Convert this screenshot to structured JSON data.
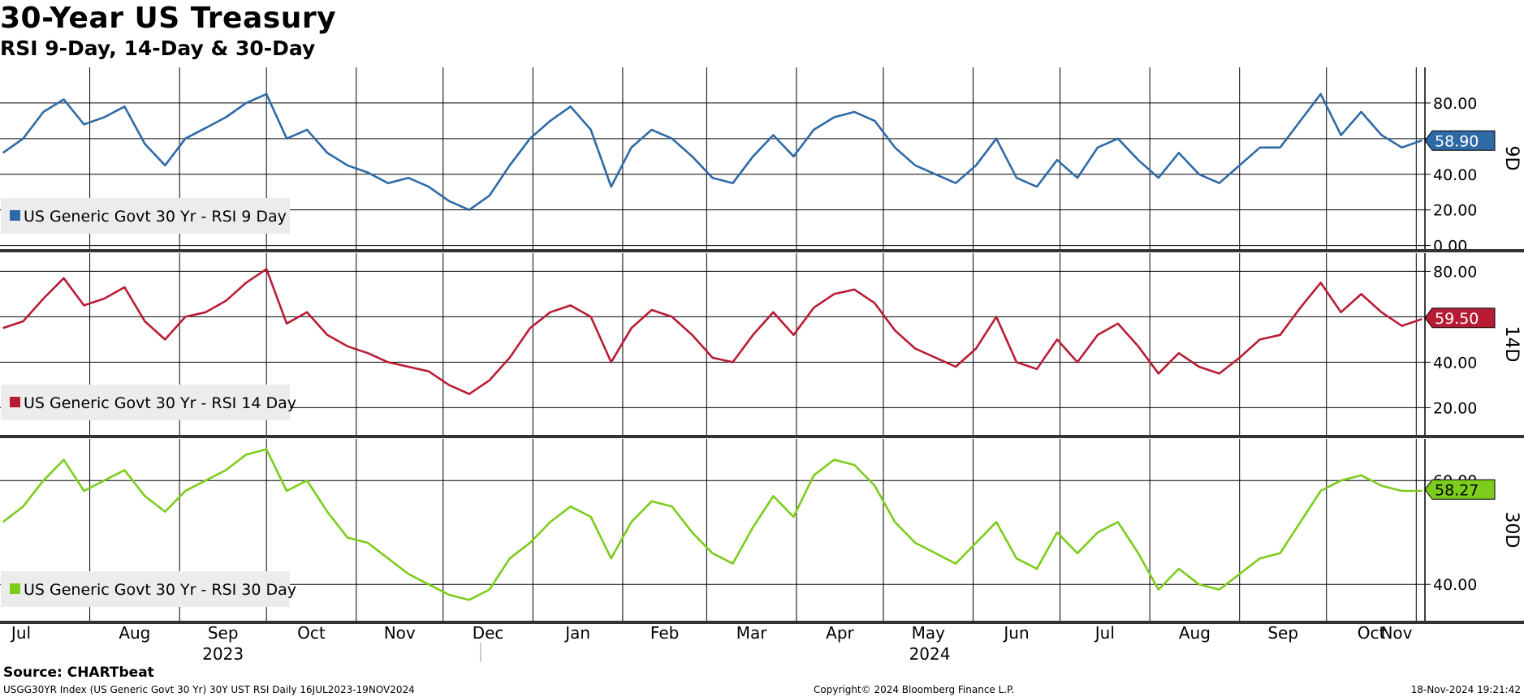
{
  "title": "30-Year US Treasury",
  "subtitle": "RSI 9-Day, 14-Day & 30-Day",
  "footer": {
    "source": "Source: CHARTbeat",
    "ticker": "USGG30YR Index (US Generic Govt 30 Yr) 30Y UST RSI  Daily 16JUL2023-19NOV2024",
    "copyright": "Copyright© 2024 Bloomberg Finance L.P.",
    "timestamp": "18-Nov-2024 19:21:42"
  },
  "colors": {
    "rsi9": "#2e6aa6",
    "rsi14": "#b81c35",
    "rsi30": "#7ccc1c",
    "grid": "#000000"
  },
  "chart_data": [
    {
      "type": "line",
      "name": "9D",
      "legend": "US Generic Govt 30 Yr - RSI 9 Day",
      "last_value": "58.90",
      "ylim": [
        -2,
        100
      ],
      "yticks": [
        0,
        20,
        40,
        60,
        80
      ],
      "ytick_labels": [
        "0.00",
        "20.00",
        "40.00",
        "",
        "80.00"
      ],
      "x": [
        "2023-07-17",
        "2023-07-24",
        "2023-07-31",
        "2023-08-07",
        "2023-08-14",
        "2023-08-21",
        "2023-08-28",
        "2023-09-04",
        "2023-09-11",
        "2023-09-18",
        "2023-09-25",
        "2023-10-02",
        "2023-10-09",
        "2023-10-16",
        "2023-10-23",
        "2023-10-30",
        "2023-11-06",
        "2023-11-13",
        "2023-11-20",
        "2023-11-27",
        "2023-12-04",
        "2023-12-11",
        "2023-12-18",
        "2023-12-25",
        "2024-01-01",
        "2024-01-08",
        "2024-01-15",
        "2024-01-22",
        "2024-01-29",
        "2024-02-05",
        "2024-02-12",
        "2024-02-19",
        "2024-02-26",
        "2024-03-04",
        "2024-03-11",
        "2024-03-18",
        "2024-03-25",
        "2024-04-01",
        "2024-04-08",
        "2024-04-15",
        "2024-04-22",
        "2024-04-29",
        "2024-05-06",
        "2024-05-13",
        "2024-05-20",
        "2024-05-27",
        "2024-06-03",
        "2024-06-10",
        "2024-06-17",
        "2024-06-24",
        "2024-07-01",
        "2024-07-08",
        "2024-07-15",
        "2024-07-22",
        "2024-07-29",
        "2024-08-05",
        "2024-08-12",
        "2024-08-19",
        "2024-08-26",
        "2024-09-02",
        "2024-09-09",
        "2024-09-16",
        "2024-09-23",
        "2024-09-30",
        "2024-10-07",
        "2024-10-14",
        "2024-10-21",
        "2024-10-28",
        "2024-11-04",
        "2024-11-11",
        "2024-11-18"
      ],
      "values": [
        52,
        60,
        75,
        82,
        68,
        72,
        78,
        57,
        45,
        60,
        66,
        72,
        80,
        85,
        60,
        65,
        52,
        45,
        41,
        35,
        38,
        33,
        25,
        20,
        28,
        45,
        60,
        70,
        78,
        65,
        33,
        55,
        65,
        60,
        50,
        38,
        35,
        50,
        62,
        50,
        65,
        72,
        75,
        70,
        55,
        45,
        40,
        35,
        45,
        60,
        38,
        33,
        48,
        38,
        55,
        60,
        48,
        38,
        52,
        40,
        35,
        45,
        55,
        55,
        70,
        85,
        62,
        75,
        62,
        55,
        59
      ]
    },
    {
      "type": "line",
      "name": "14D",
      "legend": "US Generic Govt 30 Yr - RSI 14 Day",
      "last_value": "59.50",
      "ylim": [
        8,
        88
      ],
      "yticks": [
        20,
        40,
        60,
        80
      ],
      "ytick_labels": [
        "20.00",
        "40.00",
        "",
        "80.00"
      ],
      "x": [
        "2023-07-17",
        "2023-07-24",
        "2023-07-31",
        "2023-08-07",
        "2023-08-14",
        "2023-08-21",
        "2023-08-28",
        "2023-09-04",
        "2023-09-11",
        "2023-09-18",
        "2023-09-25",
        "2023-10-02",
        "2023-10-09",
        "2023-10-16",
        "2023-10-23",
        "2023-10-30",
        "2023-11-06",
        "2023-11-13",
        "2023-11-20",
        "2023-11-27",
        "2023-12-04",
        "2023-12-11",
        "2023-12-18",
        "2023-12-25",
        "2024-01-01",
        "2024-01-08",
        "2024-01-15",
        "2024-01-22",
        "2024-01-29",
        "2024-02-05",
        "2024-02-12",
        "2024-02-19",
        "2024-02-26",
        "2024-03-04",
        "2024-03-11",
        "2024-03-18",
        "2024-03-25",
        "2024-04-01",
        "2024-04-08",
        "2024-04-15",
        "2024-04-22",
        "2024-04-29",
        "2024-05-06",
        "2024-05-13",
        "2024-05-20",
        "2024-05-27",
        "2024-06-03",
        "2024-06-10",
        "2024-06-17",
        "2024-06-24",
        "2024-07-01",
        "2024-07-08",
        "2024-07-15",
        "2024-07-22",
        "2024-07-29",
        "2024-08-05",
        "2024-08-12",
        "2024-08-19",
        "2024-08-26",
        "2024-09-02",
        "2024-09-09",
        "2024-09-16",
        "2024-09-23",
        "2024-09-30",
        "2024-10-07",
        "2024-10-14",
        "2024-10-21",
        "2024-10-28",
        "2024-11-04",
        "2024-11-11",
        "2024-11-18"
      ],
      "values": [
        55,
        58,
        68,
        77,
        65,
        68,
        73,
        58,
        50,
        60,
        62,
        67,
        75,
        81,
        57,
        62,
        52,
        47,
        44,
        40,
        38,
        36,
        30,
        26,
        32,
        42,
        55,
        62,
        65,
        60,
        40,
        55,
        63,
        60,
        52,
        42,
        40,
        52,
        62,
        52,
        64,
        70,
        72,
        66,
        54,
        46,
        42,
        38,
        46,
        60,
        40,
        37,
        50,
        40,
        52,
        57,
        47,
        35,
        44,
        38,
        35,
        42,
        50,
        52,
        64,
        75,
        62,
        70,
        62,
        56,
        59
      ]
    },
    {
      "type": "line",
      "name": "30D",
      "legend": "US Generic Govt 30 Yr - RSI 30 Day",
      "last_value": "58.27",
      "ylim": [
        33,
        68
      ],
      "yticks": [
        40,
        60
      ],
      "ytick_labels": [
        "40.00",
        "60.00"
      ],
      "x": [
        "2023-07-17",
        "2023-07-24",
        "2023-07-31",
        "2023-08-07",
        "2023-08-14",
        "2023-08-21",
        "2023-08-28",
        "2023-09-04",
        "2023-09-11",
        "2023-09-18",
        "2023-09-25",
        "2023-10-02",
        "2023-10-09",
        "2023-10-16",
        "2023-10-23",
        "2023-10-30",
        "2023-11-06",
        "2023-11-13",
        "2023-11-20",
        "2023-11-27",
        "2023-12-04",
        "2023-12-11",
        "2023-12-18",
        "2023-12-25",
        "2024-01-01",
        "2024-01-08",
        "2024-01-15",
        "2024-01-22",
        "2024-01-29",
        "2024-02-05",
        "2024-02-12",
        "2024-02-19",
        "2024-02-26",
        "2024-03-04",
        "2024-03-11",
        "2024-03-18",
        "2024-03-25",
        "2024-04-01",
        "2024-04-08",
        "2024-04-15",
        "2024-04-22",
        "2024-04-29",
        "2024-05-06",
        "2024-05-13",
        "2024-05-20",
        "2024-05-27",
        "2024-06-03",
        "2024-06-10",
        "2024-06-17",
        "2024-06-24",
        "2024-07-01",
        "2024-07-08",
        "2024-07-15",
        "2024-07-22",
        "2024-07-29",
        "2024-08-05",
        "2024-08-12",
        "2024-08-19",
        "2024-08-26",
        "2024-09-02",
        "2024-09-09",
        "2024-09-16",
        "2024-09-23",
        "2024-09-30",
        "2024-10-07",
        "2024-10-14",
        "2024-10-21",
        "2024-10-28",
        "2024-11-04",
        "2024-11-11",
        "2024-11-18"
      ],
      "values": [
        52,
        55,
        60,
        64,
        58,
        60,
        62,
        57,
        54,
        58,
        60,
        62,
        65,
        66,
        58,
        60,
        54,
        49,
        48,
        45,
        42,
        40,
        38,
        37,
        39,
        45,
        48,
        52,
        55,
        53,
        45,
        52,
        56,
        55,
        50,
        46,
        44,
        51,
        57,
        53,
        61,
        64,
        63,
        59,
        52,
        48,
        46,
        44,
        48,
        52,
        45,
        43,
        50,
        46,
        50,
        52,
        46,
        39,
        43,
        40,
        39,
        42,
        45,
        46,
        52,
        58,
        60,
        61,
        59,
        58,
        58
      ]
    }
  ],
  "x_axis": {
    "months": [
      "Jul",
      "Aug",
      "Sep",
      "Oct",
      "Nov",
      "Dec",
      "Jan",
      "Feb",
      "Mar",
      "Apr",
      "May",
      "Jun",
      "Jul",
      "Aug",
      "Sep",
      "Oct",
      "Nov"
    ],
    "month_dates": [
      "2023-07-16",
      "2023-08-16",
      "2023-09-16",
      "2023-10-16",
      "2023-11-16",
      "2023-12-16",
      "2024-01-16",
      "2024-02-16",
      "2024-03-16",
      "2024-04-16",
      "2024-05-16",
      "2024-06-16",
      "2024-07-16",
      "2024-08-16",
      "2024-09-16",
      "2024-10-16",
      "2024-11-16"
    ],
    "years": [
      "2023",
      "2024"
    ],
    "year_dates": [
      "2023-10-01",
      "2024-06-01"
    ],
    "range": [
      "2023-07-16",
      "2024-11-19"
    ]
  }
}
